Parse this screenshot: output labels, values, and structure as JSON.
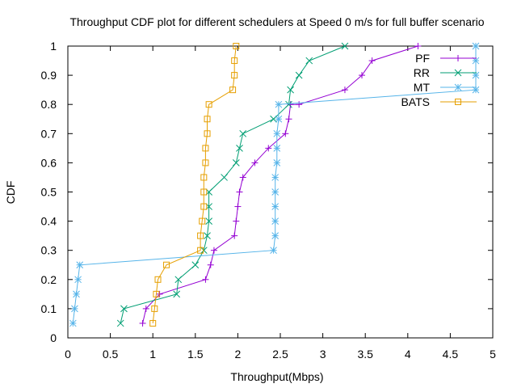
{
  "chart_data": {
    "type": "line",
    "title": "Throughput CDF plot for different schedulers at Speed 0 m/s for full buffer scenario",
    "xlabel": "Throughput(Mbps)",
    "ylabel": "CDF",
    "xlim": [
      0,
      5
    ],
    "ylim": [
      0,
      1
    ],
    "xticks": [
      "0",
      "0.5",
      "1",
      "1.5",
      "2",
      "2.5",
      "3",
      "3.5",
      "4",
      "4.5",
      "5"
    ],
    "yticks": [
      "0",
      "0.1",
      "0.2",
      "0.3",
      "0.4",
      "0.5",
      "0.6",
      "0.7",
      "0.8",
      "0.9",
      "1"
    ],
    "grid": false,
    "legend": "top-right",
    "series": [
      {
        "name": "PF",
        "color": "#9400d3",
        "marker": "plus",
        "x": [
          0.88,
          0.92,
          1.08,
          1.62,
          1.68,
          1.72,
          1.96,
          1.98,
          2.0,
          2.02,
          2.06,
          2.2,
          2.36,
          2.56,
          2.6,
          2.62,
          2.72,
          3.26,
          3.46,
          3.58,
          4.12
        ],
        "y": [
          0.05,
          0.1,
          0.15,
          0.2,
          0.25,
          0.3,
          0.35,
          0.4,
          0.45,
          0.5,
          0.55,
          0.6,
          0.65,
          0.7,
          0.75,
          0.8,
          0.8,
          0.85,
          0.9,
          0.95,
          1.0
        ]
      },
      {
        "name": "RR",
        "color": "#009e73",
        "marker": "x",
        "x": [
          0.62,
          0.66,
          1.28,
          1.3,
          1.5,
          1.6,
          1.64,
          1.66,
          1.66,
          1.66,
          1.84,
          1.98,
          2.02,
          2.06,
          2.42,
          2.6,
          2.62,
          2.72,
          2.84,
          3.26
        ],
        "y": [
          0.05,
          0.1,
          0.15,
          0.2,
          0.25,
          0.3,
          0.35,
          0.4,
          0.45,
          0.5,
          0.55,
          0.6,
          0.65,
          0.7,
          0.75,
          0.8,
          0.85,
          0.9,
          0.95,
          1.0
        ]
      },
      {
        "name": "MT",
        "color": "#56b4e9",
        "marker": "star",
        "x": [
          0.06,
          0.08,
          0.1,
          0.12,
          0.14,
          2.42,
          2.44,
          2.44,
          2.44,
          2.44,
          2.44,
          2.46,
          2.46,
          2.46,
          2.48,
          2.48,
          4.8,
          4.8,
          4.8,
          4.8
        ],
        "y": [
          0.05,
          0.1,
          0.15,
          0.2,
          0.25,
          0.3,
          0.35,
          0.4,
          0.45,
          0.5,
          0.55,
          0.6,
          0.65,
          0.7,
          0.75,
          0.8,
          0.85,
          0.9,
          0.95,
          1.0
        ]
      },
      {
        "name": "BATS",
        "color": "#e69f00",
        "marker": "square",
        "x": [
          1.0,
          1.02,
          1.04,
          1.06,
          1.16,
          1.56,
          1.56,
          1.58,
          1.6,
          1.6,
          1.6,
          1.62,
          1.62,
          1.64,
          1.64,
          1.66,
          1.94,
          1.96,
          1.96,
          1.98
        ],
        "y": [
          0.05,
          0.1,
          0.15,
          0.2,
          0.25,
          0.3,
          0.35,
          0.4,
          0.45,
          0.5,
          0.55,
          0.6,
          0.65,
          0.7,
          0.75,
          0.8,
          0.85,
          0.9,
          0.95,
          1.0
        ]
      }
    ]
  }
}
